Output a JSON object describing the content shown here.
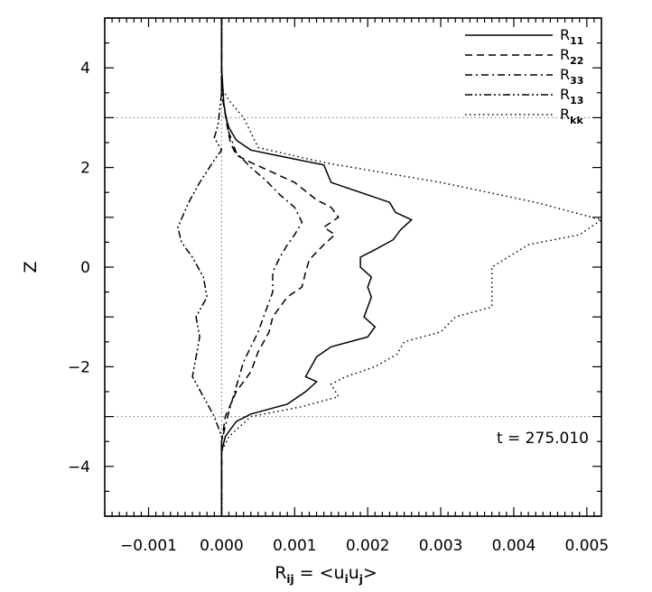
{
  "chart_data": {
    "type": "line",
    "xlabel": {
      "base": "R",
      "sub": "ij",
      "eq": " = <u",
      "sub1": "i",
      "mid": "u",
      "sub2": "j",
      "end": ">"
    },
    "ylabel": "Z",
    "xlim": [
      -0.0016,
      0.0052
    ],
    "ylim": [
      -5,
      5
    ],
    "xticks": [
      -0.001,
      0.0,
      0.001,
      0.002,
      0.003,
      0.004,
      0.005
    ],
    "xtick_labels": [
      "−0.001",
      "0.000",
      "0.001",
      "0.002",
      "0.003",
      "0.004",
      "0.005"
    ],
    "yticks": [
      -4,
      -2,
      0,
      2,
      4
    ],
    "ytick_labels": [
      "−4",
      "−2",
      "0",
      "2",
      "4"
    ],
    "annotation": "t = 275.010",
    "hlines": [
      3,
      -3
    ],
    "vlines": [
      0
    ],
    "series": [
      {
        "name": "R",
        "sub": "11",
        "style": "solid",
        "points": [
          [
            0.0,
            5.0
          ],
          [
            0.0,
            4.0
          ],
          [
            3e-05,
            3.3
          ],
          [
            6e-05,
            3.0
          ],
          [
            0.0001,
            2.8
          ],
          [
            0.0002,
            2.55
          ],
          [
            0.0004,
            2.35
          ],
          [
            0.0009,
            2.2
          ],
          [
            0.0014,
            2.05
          ],
          [
            0.0015,
            1.7
          ],
          [
            0.0019,
            1.5
          ],
          [
            0.0023,
            1.3
          ],
          [
            0.00238,
            1.1
          ],
          [
            0.0026,
            0.95
          ],
          [
            0.00245,
            0.75
          ],
          [
            0.00235,
            0.55
          ],
          [
            0.0021,
            0.35
          ],
          [
            0.0019,
            0.2
          ],
          [
            0.0019,
            0.0
          ],
          [
            0.00205,
            -0.2
          ],
          [
            0.002,
            -0.4
          ],
          [
            0.00205,
            -0.6
          ],
          [
            0.002,
            -0.8
          ],
          [
            0.00195,
            -1.0
          ],
          [
            0.0021,
            -1.2
          ],
          [
            0.002,
            -1.4
          ],
          [
            0.0015,
            -1.6
          ],
          [
            0.0013,
            -1.8
          ],
          [
            0.00115,
            -2.2
          ],
          [
            0.0013,
            -2.3
          ],
          [
            0.00115,
            -2.5
          ],
          [
            0.0009,
            -2.75
          ],
          [
            0.0004,
            -2.95
          ],
          [
            0.0002,
            -3.1
          ],
          [
            5e-05,
            -3.4
          ],
          [
            0.0,
            -3.7
          ],
          [
            0.0,
            -5.0
          ]
        ]
      },
      {
        "name": "R",
        "sub": "22",
        "style": "dashed",
        "points": [
          [
            0.0,
            5.0
          ],
          [
            0.0,
            3.5
          ],
          [
            8e-05,
            2.8
          ],
          [
            0.00012,
            2.5
          ],
          [
            0.0002,
            2.25
          ],
          [
            0.0004,
            2.1
          ],
          [
            0.0007,
            1.9
          ],
          [
            0.001,
            1.7
          ],
          [
            0.0013,
            1.35
          ],
          [
            0.0015,
            1.2
          ],
          [
            0.0016,
            1.0
          ],
          [
            0.0014,
            0.8
          ],
          [
            0.00155,
            0.65
          ],
          [
            0.0014,
            0.45
          ],
          [
            0.0012,
            0.15
          ],
          [
            0.00115,
            -0.1
          ],
          [
            0.0011,
            -0.4
          ],
          [
            0.0009,
            -0.6
          ],
          [
            0.0007,
            -1.0
          ],
          [
            0.00065,
            -1.3
          ],
          [
            0.0005,
            -1.7
          ],
          [
            0.0004,
            -2.1
          ],
          [
            0.0002,
            -2.5
          ],
          [
            5e-05,
            -3.0
          ],
          [
            0.0,
            -3.5
          ],
          [
            0.0,
            -5.0
          ]
        ]
      },
      {
        "name": "R",
        "sub": "33",
        "style": "dashdot",
        "points": [
          [
            0.0,
            5.0
          ],
          [
            0.0,
            3.5
          ],
          [
            0.0001,
            2.7
          ],
          [
            0.0002,
            2.3
          ],
          [
            0.0004,
            2.0
          ],
          [
            0.0006,
            1.75
          ],
          [
            0.0008,
            1.45
          ],
          [
            0.001,
            1.2
          ],
          [
            0.0011,
            0.9
          ],
          [
            0.001,
            0.65
          ],
          [
            0.0009,
            0.45
          ],
          [
            0.0008,
            0.2
          ],
          [
            0.0007,
            -0.1
          ],
          [
            0.0007,
            -0.5
          ],
          [
            0.0006,
            -0.9
          ],
          [
            0.0005,
            -1.3
          ],
          [
            0.0003,
            -1.9
          ],
          [
            0.0002,
            -2.4
          ],
          [
            0.0001,
            -2.9
          ],
          [
            0.0,
            -3.5
          ],
          [
            0.0,
            -5.0
          ]
        ]
      },
      {
        "name": "R",
        "sub": "13",
        "style": "dashdotdot",
        "points": [
          [
            0.0,
            5.0
          ],
          [
            0.0,
            3.5
          ],
          [
            -5e-05,
            2.85
          ],
          [
            -0.0001,
            2.6
          ],
          [
            0.0,
            2.35
          ],
          [
            -0.0001,
            2.15
          ],
          [
            -0.0003,
            1.7
          ],
          [
            -0.00045,
            1.3
          ],
          [
            -0.0006,
            0.8
          ],
          [
            -0.00055,
            0.5
          ],
          [
            -0.0004,
            0.2
          ],
          [
            -0.00025,
            -0.2
          ],
          [
            -0.0002,
            -0.6
          ],
          [
            -0.00035,
            -1.0
          ],
          [
            -0.0003,
            -1.4
          ],
          [
            -0.00035,
            -1.8
          ],
          [
            -0.0004,
            -2.2
          ],
          [
            -0.00025,
            -2.6
          ],
          [
            -0.0001,
            -3.0
          ],
          [
            0.0,
            -3.4
          ],
          [
            0.0,
            -5.0
          ]
        ]
      },
      {
        "name": "R",
        "sub": "kk",
        "style": "dotted",
        "points": [
          [
            0.0,
            5.0
          ],
          [
            0.0,
            3.6
          ],
          [
            0.0001,
            3.35
          ],
          [
            0.0003,
            3.0
          ],
          [
            0.0005,
            2.4
          ],
          [
            0.0014,
            2.1
          ],
          [
            0.003,
            1.7
          ],
          [
            0.0043,
            1.3
          ],
          [
            0.0052,
            0.95
          ],
          [
            0.0049,
            0.65
          ],
          [
            0.0042,
            0.45
          ],
          [
            0.0037,
            0.0
          ],
          [
            0.0037,
            -0.4
          ],
          [
            0.0037,
            -0.8
          ],
          [
            0.0032,
            -1.0
          ],
          [
            0.003,
            -1.3
          ],
          [
            0.0025,
            -1.5
          ],
          [
            0.0024,
            -1.75
          ],
          [
            0.0021,
            -2.0
          ],
          [
            0.0017,
            -2.2
          ],
          [
            0.0015,
            -2.35
          ],
          [
            0.0016,
            -2.6
          ],
          [
            0.0011,
            -2.8
          ],
          [
            0.0004,
            -3.0
          ],
          [
            0.0001,
            -3.4
          ],
          [
            0.0,
            -3.7
          ],
          [
            0.0,
            -5.0
          ]
        ]
      }
    ]
  }
}
